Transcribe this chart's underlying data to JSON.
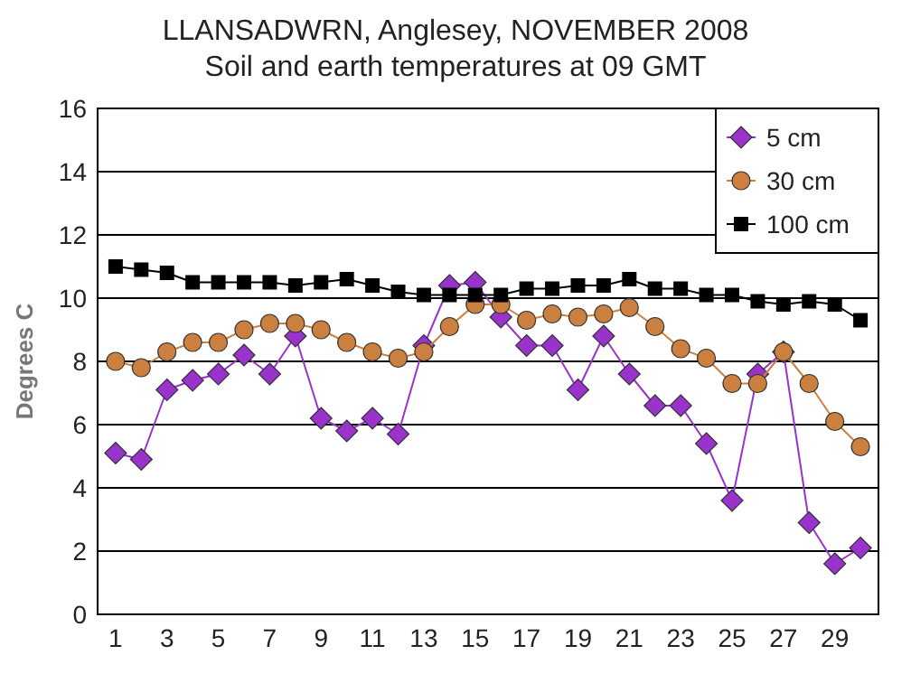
{
  "chart_data": {
    "type": "line",
    "title": "LLANSADWRN, Anglesey, NOVEMBER 2008",
    "subtitle": "Soil and earth temperatures at 09 GMT",
    "ylabel": "Degrees C",
    "x": [
      1,
      2,
      3,
      4,
      5,
      6,
      7,
      8,
      9,
      10,
      11,
      12,
      13,
      14,
      15,
      16,
      17,
      18,
      19,
      20,
      21,
      22,
      23,
      24,
      25,
      26,
      27,
      28,
      29,
      30
    ],
    "xlim": [
      0.3,
      30.7
    ],
    "xticks": [
      1,
      3,
      5,
      7,
      9,
      11,
      13,
      15,
      17,
      19,
      21,
      23,
      25,
      27,
      29
    ],
    "series": [
      {
        "name": "5 cm",
        "color": "#9933cc",
        "marker": "diamond",
        "values": [
          5.1,
          4.9,
          7.1,
          7.4,
          7.6,
          8.2,
          7.6,
          8.8,
          6.2,
          5.8,
          6.2,
          5.7,
          8.5,
          10.4,
          10.5,
          9.4,
          8.5,
          8.5,
          7.1,
          8.8,
          7.6,
          6.6,
          6.6,
          5.4,
          3.6,
          7.6,
          8.3,
          2.9,
          1.6,
          2.1
        ]
      },
      {
        "name": "30 cm",
        "color": "#cc8040",
        "marker": "circle",
        "values": [
          8.0,
          7.8,
          8.3,
          8.6,
          8.6,
          9.0,
          9.2,
          9.2,
          9.0,
          8.6,
          8.3,
          8.1,
          8.3,
          9.1,
          9.8,
          9.8,
          9.3,
          9.5,
          9.4,
          9.5,
          9.7,
          9.1,
          8.4,
          8.1,
          7.3,
          7.3,
          8.3,
          7.3,
          6.1,
          5.3
        ]
      },
      {
        "name": "100 cm",
        "color": "#000000",
        "marker": "square",
        "values": [
          11.0,
          10.9,
          10.8,
          10.5,
          10.5,
          10.5,
          10.5,
          10.4,
          10.5,
          10.6,
          10.4,
          10.2,
          10.1,
          10.1,
          10.1,
          10.1,
          10.3,
          10.3,
          10.4,
          10.4,
          10.6,
          10.3,
          10.3,
          10.1,
          10.1,
          9.9,
          9.8,
          9.9,
          9.8,
          9.3
        ]
      }
    ],
    "ylim": [
      0,
      16
    ],
    "yticks": [
      0,
      2,
      4,
      6,
      8,
      10,
      12,
      14,
      16
    ],
    "grid": "y",
    "legend": "top right"
  }
}
